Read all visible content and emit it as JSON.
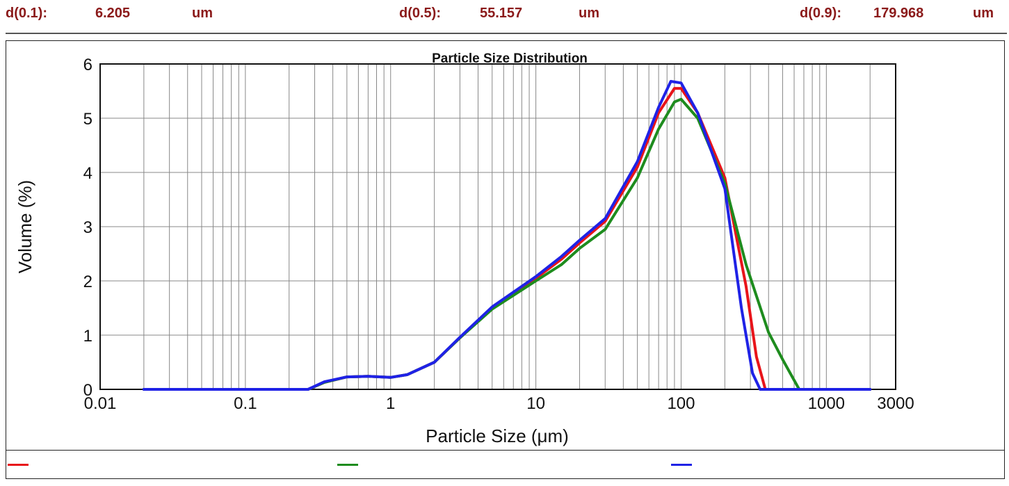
{
  "stats": {
    "d10_label": "d(0.1):",
    "d10_value": "6.205",
    "d10_unit": "um",
    "d50_label": "d(0.5):",
    "d50_value": "55.157",
    "d50_unit": "um",
    "d90_label": "d(0.9):",
    "d90_value": "179.968",
    "d90_unit": "um"
  },
  "colors": {
    "stat_text": "#8b1a1a",
    "grid": "#888888",
    "axis": "#111111"
  },
  "chart_data": {
    "type": "line",
    "title": "Particle Size Distribution",
    "xlabel": "Particle Size (μm)",
    "ylabel": "Volume (%)",
    "x_scale": "log",
    "xlim": [
      0.01,
      3000
    ],
    "ylim": [
      0,
      6
    ],
    "grid": true,
    "x_ticks": [
      0.01,
      0.1,
      1,
      10,
      100,
      1000,
      3000
    ],
    "x_tick_labels": [
      "0.01",
      "0.1",
      "1",
      "10",
      "100",
      "1000",
      "3000"
    ],
    "y_ticks": [
      0,
      1,
      2,
      3,
      4,
      5,
      6
    ],
    "y_tick_labels": [
      "0",
      "1",
      "2",
      "3",
      "4",
      "5",
      "6"
    ],
    "legend": "bottom",
    "series": [
      {
        "color": "#e8141a",
        "x": [
          0.02,
          0.27,
          0.35,
          0.5,
          0.7,
          1.0,
          1.3,
          2,
          3,
          5,
          10,
          15,
          20,
          30,
          50,
          70,
          90,
          100,
          130,
          200,
          280,
          330,
          380,
          2000
        ],
        "y": [
          0,
          0,
          0.13,
          0.23,
          0.24,
          0.22,
          0.27,
          0.5,
          0.95,
          1.5,
          2.05,
          2.4,
          2.7,
          3.1,
          4.1,
          5.1,
          5.55,
          5.55,
          5.1,
          3.9,
          1.9,
          0.6,
          0,
          0
        ]
      },
      {
        "color": "#1e8c1e",
        "x": [
          0.02,
          0.27,
          0.35,
          0.5,
          0.7,
          1.0,
          1.3,
          2,
          3,
          5,
          10,
          15,
          20,
          30,
          50,
          70,
          90,
          100,
          130,
          200,
          280,
          400,
          500,
          650,
          2000
        ],
        "y": [
          0,
          0,
          0.13,
          0.23,
          0.24,
          0.22,
          0.27,
          0.5,
          0.95,
          1.48,
          2.0,
          2.3,
          2.6,
          2.95,
          3.9,
          4.8,
          5.3,
          5.35,
          5.0,
          3.8,
          2.3,
          1.05,
          0.55,
          0,
          0
        ]
      },
      {
        "color": "#1f22e6",
        "x": [
          0.02,
          0.27,
          0.35,
          0.5,
          0.7,
          1.0,
          1.3,
          2,
          3,
          5,
          10,
          15,
          20,
          30,
          50,
          70,
          85,
          100,
          130,
          200,
          260,
          310,
          350,
          2000
        ],
        "y": [
          0,
          0,
          0.14,
          0.23,
          0.24,
          0.22,
          0.27,
          0.5,
          0.96,
          1.52,
          2.08,
          2.45,
          2.75,
          3.15,
          4.2,
          5.2,
          5.68,
          5.65,
          5.1,
          3.7,
          1.5,
          0.3,
          0,
          0
        ]
      }
    ]
  }
}
